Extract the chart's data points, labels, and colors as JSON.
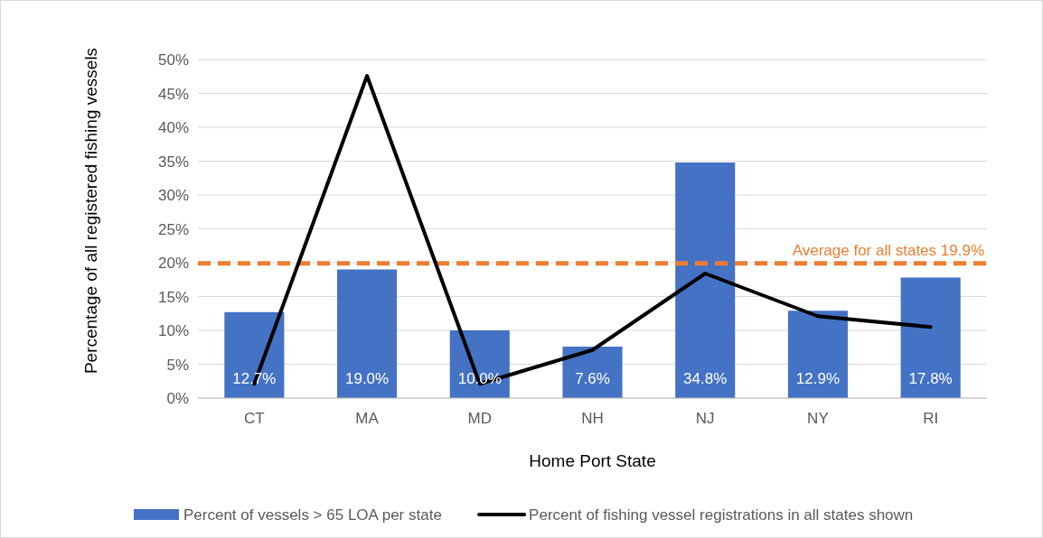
{
  "chart_data": {
    "type": "bar",
    "xlabel": "Home Port State",
    "ylabel": "Percentage of all registered  fishing vessels",
    "categories": [
      "CT",
      "MA",
      "MD",
      "NH",
      "NJ",
      "NY",
      "RI"
    ],
    "series": [
      {
        "name": "Percent of vessels > 65 LOA per state",
        "color": "#4472c4",
        "values": [
          12.7,
          19.0,
          10.0,
          7.6,
          34.8,
          12.9,
          17.8
        ],
        "value_labels": [
          "12.7%",
          "19.0%",
          "10.0%",
          "7.6%",
          "34.8%",
          "12.9%",
          "17.8%"
        ]
      },
      {
        "name": "Percent of  fishing vessel registrations in all states shown",
        "type": "line",
        "color": "#000000",
        "values": [
          2.1,
          47.6,
          2.1,
          7.1,
          18.4,
          12.1,
          10.5
        ]
      }
    ],
    "ylim": [
      0,
      50
    ],
    "yticks": [
      {
        "value": 0,
        "label": "0%"
      },
      {
        "value": 5,
        "label": "5%"
      },
      {
        "value": 10,
        "label": "10%"
      },
      {
        "value": 15,
        "label": "15%"
      },
      {
        "value": 20,
        "label": "20%"
      },
      {
        "value": 25,
        "label": "25%"
      },
      {
        "value": 30,
        "label": "30%"
      },
      {
        "value": 35,
        "label": "35%"
      },
      {
        "value": 40,
        "label": "40%"
      },
      {
        "value": 45,
        "label": "45%"
      },
      {
        "value": 50,
        "label": "50%"
      }
    ],
    "grid": "y",
    "legend": "bottom",
    "marker": "none",
    "line_style": "solid",
    "ref_lines": [
      {
        "axis": "y",
        "value": 19.9,
        "label": "Average for all states 19.9%",
        "color": "#ed7d31",
        "line_style": "dashed"
      }
    ]
  }
}
